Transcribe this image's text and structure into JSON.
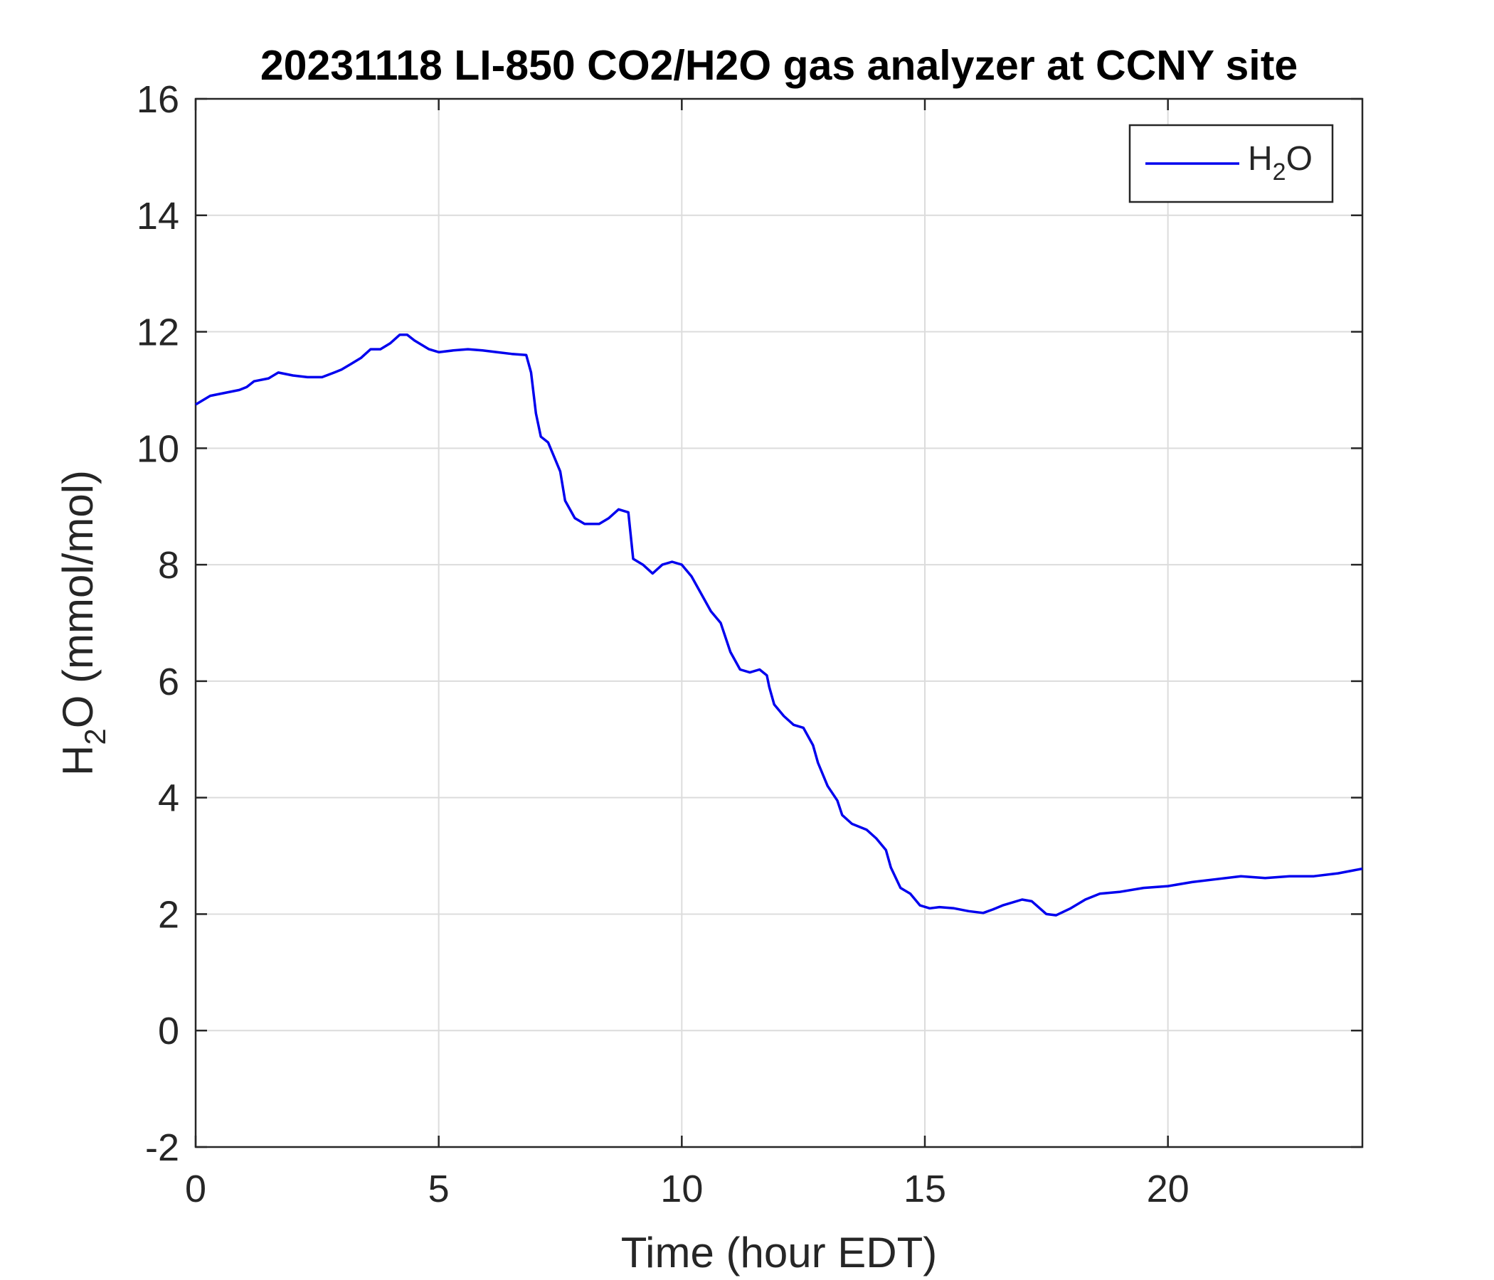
{
  "chart_data": {
    "type": "line",
    "title": "20231118 LI-850 CO2/H2O gas analyzer at CCNY site",
    "xlabel": "Time (hour EDT)",
    "ylabel": {
      "main": "H",
      "sub": "2",
      "rest": "O (mmol/mol)"
    },
    "xlim": [
      0,
      24
    ],
    "ylim": [
      -2,
      16
    ],
    "xticks": [
      0,
      5,
      10,
      15,
      20
    ],
    "yticks": [
      -2,
      0,
      2,
      4,
      6,
      8,
      10,
      12,
      14,
      16
    ],
    "grid": true,
    "legend_position": "top-right",
    "series": [
      {
        "name": {
          "main": "H",
          "sub": "2",
          "rest": "O"
        },
        "color": "#0000ee",
        "x": [
          0,
          0.3,
          0.6,
          0.9,
          1.05,
          1.2,
          1.5,
          1.7,
          2.0,
          2.3,
          2.6,
          2.85,
          3.0,
          3.2,
          3.4,
          3.6,
          3.8,
          4.0,
          4.2,
          4.35,
          4.5,
          4.8,
          5.0,
          5.3,
          5.6,
          5.9,
          6.2,
          6.5,
          6.8,
          6.9,
          7.0,
          7.1,
          7.25,
          7.4,
          7.5,
          7.6,
          7.8,
          8.0,
          8.3,
          8.5,
          8.7,
          8.9,
          9.0,
          9.2,
          9.4,
          9.6,
          9.8,
          10.0,
          10.2,
          10.4,
          10.6,
          10.8,
          11.0,
          11.2,
          11.4,
          11.6,
          11.75,
          11.8,
          11.9,
          12.1,
          12.3,
          12.5,
          12.7,
          12.8,
          13.0,
          13.2,
          13.3,
          13.5,
          13.8,
          14.0,
          14.2,
          14.3,
          14.5,
          14.7,
          14.9,
          15.1,
          15.3,
          15.6,
          15.9,
          16.2,
          16.4,
          16.6,
          17.0,
          17.2,
          17.5,
          17.7,
          18.0,
          18.3,
          18.6,
          19.0,
          19.5,
          20.0,
          20.5,
          21.0,
          21.5,
          22.0,
          22.5,
          23.0,
          23.5,
          24.0
        ],
        "y": [
          10.75,
          10.9,
          10.95,
          11.0,
          11.05,
          11.15,
          11.2,
          11.3,
          11.25,
          11.22,
          11.22,
          11.3,
          11.35,
          11.45,
          11.55,
          11.7,
          11.7,
          11.8,
          11.95,
          11.95,
          11.85,
          11.7,
          11.65,
          11.68,
          11.7,
          11.68,
          11.65,
          11.62,
          11.6,
          11.3,
          10.6,
          10.2,
          10.1,
          9.8,
          9.6,
          9.1,
          8.8,
          8.7,
          8.7,
          8.8,
          8.95,
          8.9,
          8.1,
          8.0,
          7.85,
          8.0,
          8.05,
          8.0,
          7.8,
          7.5,
          7.2,
          7.0,
          6.5,
          6.2,
          6.15,
          6.2,
          6.1,
          5.9,
          5.6,
          5.4,
          5.25,
          5.2,
          4.9,
          4.6,
          4.2,
          3.95,
          3.7,
          3.55,
          3.45,
          3.3,
          3.1,
          2.8,
          2.45,
          2.35,
          2.15,
          2.1,
          2.12,
          2.1,
          2.05,
          2.02,
          2.08,
          2.15,
          2.25,
          2.22,
          2.0,
          1.98,
          2.1,
          2.25,
          2.35,
          2.38,
          2.45,
          2.48,
          2.55,
          2.6,
          2.65,
          2.62,
          2.65,
          2.65,
          2.7,
          2.78
        ]
      }
    ]
  }
}
